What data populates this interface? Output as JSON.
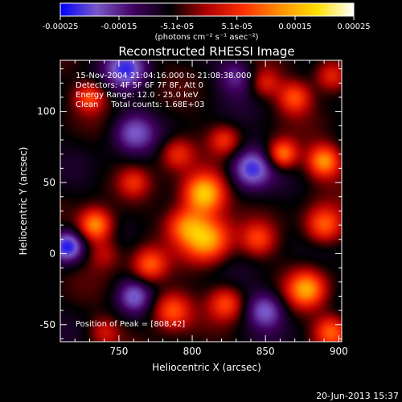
{
  "chart_data": {
    "type": "heatmap",
    "title": "Reconstructed RHESSI Image",
    "xlabel": "Heliocentric X (arcsec)",
    "ylabel": "Heliocentric Y (arcsec)",
    "xlim": [
      710,
      902
    ],
    "ylim": [
      -62,
      136
    ],
    "x_ticks": [
      750,
      800,
      850,
      900
    ],
    "y_ticks": [
      -50,
      0,
      50,
      100
    ],
    "colorbar": {
      "min": -0.00025,
      "max": 0.00025,
      "tick_values": [
        -0.00025,
        -0.00015,
        -5.1e-05,
        5.1e-05,
        0.00015,
        0.00025
      ],
      "tick_labels": [
        "-0.00025",
        "-0.00015",
        "-5.1e-05",
        "5.1e-05",
        "0.00015",
        "0.00025"
      ],
      "units": "(photons cm⁻² s⁻¹ asec⁻²)"
    },
    "colormap": [
      "#0000ff",
      "#7a58c8",
      "#400060",
      "#000000",
      "#b00000",
      "#ff3000",
      "#ff9000",
      "#ffe000",
      "#ffffff"
    ],
    "info_lines": [
      "15-Nov-2004 21:04:16.000 to 21:08:38.000",
      "Detectors: 4F 5F 6F 7F 8F, Att 0",
      "Energy Range: 12.0 - 25.0 keV",
      "Clean     Total counts: 1.68E+03"
    ],
    "peak_label": "Position of Peak = [808,42]",
    "peak": [
      808,
      42
    ],
    "sources": [
      {
        "x": 808,
        "y": 42,
        "amp": 1.0,
        "s": 10
      },
      {
        "x": 810,
        "y": 10,
        "amp": 0.85,
        "s": 11
      },
      {
        "x": 795,
        "y": 20,
        "amp": 0.55,
        "s": 9
      },
      {
        "x": 734,
        "y": 20,
        "amp": 0.8,
        "s": 8
      },
      {
        "x": 740,
        "y": 0,
        "amp": 0.3,
        "s": 8
      },
      {
        "x": 771,
        "y": -8,
        "amp": 0.55,
        "s": 8
      },
      {
        "x": 786,
        "y": -40,
        "amp": 0.6,
        "s": 9
      },
      {
        "x": 823,
        "y": -35,
        "amp": 0.5,
        "s": 8
      },
      {
        "x": 845,
        "y": 10,
        "amp": 0.45,
        "s": 8
      },
      {
        "x": 862,
        "y": 70,
        "amp": 0.7,
        "s": 7
      },
      {
        "x": 890,
        "y": 65,
        "amp": 0.75,
        "s": 8
      },
      {
        "x": 878,
        "y": -25,
        "amp": 0.75,
        "s": 9
      },
      {
        "x": 890,
        "y": 20,
        "amp": 0.65,
        "s": 9
      },
      {
        "x": 895,
        "y": -55,
        "amp": 0.6,
        "s": 8
      },
      {
        "x": 870,
        "y": 110,
        "amp": 0.55,
        "s": 8
      },
      {
        "x": 895,
        "y": 125,
        "amp": 0.5,
        "s": 8
      },
      {
        "x": 730,
        "y": 110,
        "amp": 0.5,
        "s": 7
      },
      {
        "x": 790,
        "y": 70,
        "amp": 0.45,
        "s": 8
      },
      {
        "x": 760,
        "y": 50,
        "amp": 0.35,
        "s": 7
      },
      {
        "x": 822,
        "y": 80,
        "amp": 0.4,
        "s": 7
      },
      {
        "x": 850,
        "y": 120,
        "amp": 0.35,
        "s": 7
      },
      {
        "x": 740,
        "y": -55,
        "amp": 0.3,
        "s": 7
      },
      {
        "x": 755,
        "y": 130,
        "amp": -0.55,
        "s": 10
      },
      {
        "x": 840,
        "y": 60,
        "amp": -0.6,
        "s": 10
      },
      {
        "x": 760,
        "y": 85,
        "amp": -0.45,
        "s": 10
      },
      {
        "x": 715,
        "y": 5,
        "amp": -0.7,
        "s": 8
      },
      {
        "x": 850,
        "y": -40,
        "amp": -0.5,
        "s": 9
      },
      {
        "x": 760,
        "y": -30,
        "amp": -0.45,
        "s": 8
      },
      {
        "x": 830,
        "y": 125,
        "amp": -0.35,
        "s": 9
      }
    ]
  },
  "footer_date": "20-Jun-2013 15:37"
}
